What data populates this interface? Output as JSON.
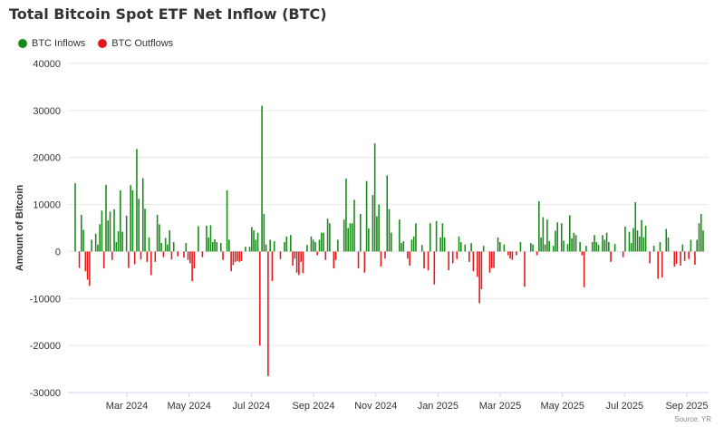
{
  "chart_data": {
    "type": "bar",
    "title": "Total Bitcoin Spot ETF Net Inflow (BTC)",
    "ylabel": "Amount of Bitcoin",
    "ylim": [
      -30000,
      40000
    ],
    "yticks": [
      "40000",
      "30000",
      "20000",
      "10000",
      "0",
      "-10000",
      "-20000",
      "-30000"
    ],
    "xticks": [
      "Mar 2024",
      "May 2024",
      "Jul 2024",
      "Sep 2024",
      "Nov 2024",
      "Jan 2025",
      "Mar 2025",
      "May 2025",
      "Jul 2025",
      "Sep 2025"
    ],
    "source": "Source: YR",
    "series": [
      {
        "name": "BTC Inflows",
        "color": "#1a8a1a"
      },
      {
        "name": "BTC Outflows",
        "color": "#e31a1c"
      }
    ],
    "values": [
      14500,
      0,
      -3500,
      7800,
      4600,
      -4200,
      -6000,
      -7300,
      2500,
      0,
      3800,
      1500,
      5800,
      8700,
      -3600,
      14200,
      6600,
      8500,
      -1800,
      9000,
      2000,
      4300,
      13000,
      4200,
      0,
      7600,
      -3500,
      14100,
      13000,
      -2700,
      21800,
      11200,
      -1700,
      15600,
      9100,
      -2200,
      3000,
      -5000,
      0,
      -2200,
      7800,
      5800,
      1800,
      -1200,
      2900,
      1500,
      4500,
      -1700,
      2000,
      0,
      -1000,
      0,
      0,
      -1300,
      1800,
      -1800,
      -2500,
      -6300,
      -3600,
      0,
      5400,
      0,
      -1200,
      0,
      5500,
      3000,
      5600,
      2000,
      2600,
      2000,
      0,
      1800,
      -1800,
      0,
      13000,
      2500,
      -4200,
      -2900,
      -2200,
      -2000,
      -2200,
      -2000,
      0,
      1000,
      0,
      1000,
      5200,
      4500,
      2500,
      4000,
      -20000,
      31000,
      8000,
      1500,
      -26500,
      2500,
      -6300,
      2200,
      0,
      0,
      -1600,
      0,
      2000,
      3200,
      0,
      3500,
      -3000,
      -1500,
      -4500,
      -5000,
      -2200,
      -4600,
      0,
      1400,
      0,
      3200,
      2500,
      2000,
      -800,
      2500,
      4000,
      4000,
      -1800,
      7000,
      6000,
      0,
      -3600,
      -1800,
      2500,
      0,
      0,
      6800,
      15500,
      5000,
      6000,
      6000,
      11000,
      0,
      -3600,
      8000,
      0,
      -4500,
      15000,
      4900,
      0,
      12000,
      23000,
      7500,
      10000,
      -3200,
      0,
      -1500,
      16200,
      9000,
      4000,
      0,
      0,
      0,
      6800,
      1800,
      2200,
      0,
      -1500,
      -3000,
      2500,
      3200,
      6000,
      0,
      0,
      1400,
      -3600,
      0,
      -4000,
      6000,
      0,
      -7000,
      6500,
      0,
      3000,
      6000,
      3000,
      0,
      -4000,
      0,
      -2500,
      0,
      -1600,
      3200,
      2000,
      0,
      1500,
      0,
      -2200,
      1800,
      -4200,
      0,
      -5400,
      -11000,
      -8000,
      1200,
      0,
      0,
      -4500,
      -3500,
      -3500,
      0,
      3000,
      2000,
      0,
      1500,
      0,
      -800,
      -1500,
      -1800,
      0,
      -800,
      0,
      2000,
      0,
      -7500,
      0,
      0,
      1800,
      1500,
      0,
      -800,
      10700,
      3000,
      7300,
      1500,
      6800,
      2200,
      0,
      1200,
      4400,
      6200,
      0,
      6000,
      2300,
      0,
      1600,
      7700,
      2800,
      4000,
      3500,
      0,
      2000,
      -800,
      -7600,
      1200,
      0,
      0,
      2000,
      3500,
      2000,
      1400,
      0,
      3500,
      2500,
      4000,
      2000,
      -2200,
      0,
      1600,
      0,
      0,
      0,
      -1200,
      5300,
      0,
      4200,
      1800,
      5000,
      10500,
      4500,
      3200,
      6700,
      3000,
      5500,
      0,
      -2500,
      0,
      1200,
      0,
      -5800,
      2000,
      -5500,
      0,
      4800,
      3000,
      0,
      0,
      -3200,
      -2600,
      0,
      -3000,
      1500,
      -2000,
      0,
      -1600,
      2500,
      0,
      -2800,
      2500,
      6000,
      8000,
      4500
    ]
  }
}
